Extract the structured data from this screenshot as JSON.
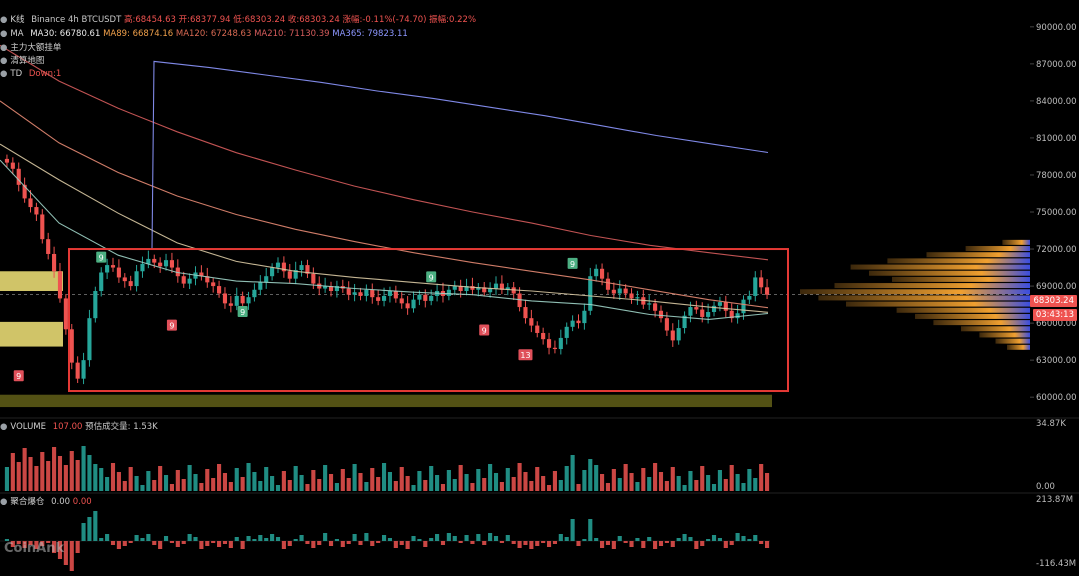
{
  "header": {
    "kline": {
      "label": "K线",
      "source": "Binance 4h BTCUSDT",
      "high": "高:68454.63",
      "open": "开:68377.94",
      "low": "低:68303.24",
      "close": "收:68303.24",
      "change": "涨幅:-0.11%(-74.70)",
      "amplitude": "振幅:0.22%"
    },
    "ma": {
      "label": "MA",
      "ma30": "MA30: 66780.61",
      "ma89": "MA89: 66874.16",
      "ma120": "MA120: 67248.63",
      "ma210": "MA210: 71130.39",
      "ma365": "MA365: 79823.11"
    },
    "indicator1": "主力大额挂单",
    "indicator2": "清算地图",
    "td": {
      "label": "TD",
      "value": "Down:1"
    }
  },
  "volume_header": {
    "label": "VOLUME",
    "value": "107.00",
    "est": "预估成交量: 1.53K"
  },
  "oi_header": {
    "label": "聚合爆仓",
    "value1": "0.00",
    "value2": "0.00"
  },
  "price_tags": {
    "last_price": "68303.24",
    "countdown": "03:43:13"
  },
  "watermark": "CoinAnk",
  "colors": {
    "up": "#26a69a",
    "down": "#ef5350",
    "box": "#e53935",
    "liq_band": "#f5e67a",
    "liq_bottom": "#5c5a16",
    "volume_profile": "#f0a030",
    "volume_profile_cold": "#3b4ee0"
  },
  "chart_data": {
    "type": "candlestick",
    "title": "Binance 4h BTCUSDT",
    "y_axis": {
      "ticks": [
        90000,
        87000,
        84000,
        81000,
        78000,
        75000,
        72000,
        69000,
        66000,
        63000,
        60000
      ],
      "tick_labels": [
        "90000.00",
        "87000.00",
        "84000.00",
        "81000.00",
        "78000.00",
        "75000.00",
        "72000.00",
        "69000.00",
        "66000.00",
        "63000.00",
        "60000.00"
      ],
      "ylim": [
        58800,
        91200
      ]
    },
    "last_price": 68303.24,
    "range_box": {
      "top": 72000,
      "bottom": 60500
    },
    "liquidation_bands": [
      {
        "from": 68600,
        "to": 70200
      },
      {
        "from": 64100,
        "to": 66100
      },
      {
        "from": 59200,
        "to": 60200
      }
    ],
    "td_labels": [
      {
        "text": "9",
        "price": 61700,
        "type": "down",
        "index": 2
      },
      {
        "text": "9",
        "price": 71300,
        "type": "up",
        "index": 16
      },
      {
        "text": "9",
        "price": 65800,
        "type": "down",
        "index": 28
      },
      {
        "text": "9",
        "price": 66900,
        "type": "up",
        "index": 40
      },
      {
        "text": "9",
        "price": 69700,
        "type": "up",
        "index": 72
      },
      {
        "text": "9",
        "price": 65400,
        "type": "down",
        "index": 81
      },
      {
        "text": "13",
        "price": 63400,
        "type": "down",
        "index": 88
      },
      {
        "text": "9",
        "price": 70800,
        "type": "up",
        "index": 96
      }
    ],
    "closes": [
      79000,
      78500,
      77200,
      76100,
      75400,
      74800,
      72800,
      71600,
      70200,
      68000,
      65500,
      62800,
      61500,
      63000,
      66400,
      68600,
      70100,
      70700,
      70500,
      69700,
      69400,
      69000,
      70200,
      70800,
      71200,
      70900,
      70600,
      71100,
      70500,
      69800,
      69200,
      69600,
      70100,
      69800,
      69300,
      69000,
      68400,
      67600,
      67400,
      68200,
      67600,
      68100,
      68700,
      69300,
      69800,
      70500,
      70900,
      70200,
      69600,
      70300,
      70700,
      70000,
      69200,
      68800,
      69000,
      68600,
      69000,
      68800,
      68300,
      68500,
      68200,
      68700,
      68100,
      67800,
      68200,
      68600,
      68000,
      67600,
      67200,
      67900,
      68300,
      67800,
      68200,
      68600,
      68200,
      68700,
      69000,
      68600,
      69000,
      68700,
      68900,
      68500,
      68800,
      69200,
      68700,
      68900,
      68400,
      67300,
      66400,
      65800,
      65200,
      64700,
      64000,
      63900,
      64800,
      65700,
      66200,
      66000,
      67000,
      69800,
      70400,
      69600,
      68700,
      68400,
      68800,
      68400,
      68000,
      68100,
      67500,
      67600,
      67000,
      66400,
      65400,
      64600,
      65600,
      66600,
      67300,
      67100,
      66500,
      66900,
      67400,
      67700,
      67000,
      66400,
      66800,
      67900,
      68200,
      69700,
      68900,
      68300
    ],
    "ma": {
      "MA30": {
        "color": "#9fd3c7",
        "values": [
          79200,
          74100,
          71500,
          70100,
          69400,
          69200,
          68800,
          68500,
          68300,
          67800,
          67500,
          66700,
          66300,
          66780.61
        ]
      },
      "MA89": {
        "color": "#d9c9a3",
        "values": [
          80500,
          77600,
          74900,
          72500,
          71000,
          70200,
          69700,
          69300,
          68900,
          68600,
          68200,
          67800,
          67300,
          66874.16
        ]
      },
      "MA120": {
        "color": "#e68a73",
        "values": [
          84000,
          80600,
          78200,
          76300,
          74800,
          73600,
          72600,
          71700,
          70900,
          70200,
          69500,
          68700,
          67900,
          67248.63
        ]
      },
      "MA210": {
        "color": "#d65c5c",
        "values": [
          88500,
          85600,
          83400,
          81500,
          79800,
          78400,
          77100,
          76000,
          75000,
          74100,
          73100,
          72300,
          71700,
          71130.39
        ]
      },
      "MA365": {
        "color": "#8d97ff",
        "values": [
          72000,
          87200,
          86700,
          86100,
          85500,
          84800,
          84200,
          83500,
          82800,
          82000,
          81200,
          80500,
          79823.11
        ]
      }
    },
    "volume": {
      "yticks": [
        34870,
        0
      ],
      "ytick_labels": [
        "34.87K",
        "0.00"
      ]
    },
    "liquidations": {
      "yticks": [
        213870000,
        -116430000
      ],
      "ytick_labels": [
        "213.87M",
        "-116.43M"
      ]
    },
    "volume_profile_side": [
      {
        "price": 72500,
        "w": 0.12
      },
      {
        "price": 72000,
        "w": 0.28
      },
      {
        "price": 71500,
        "w": 0.45
      },
      {
        "price": 71000,
        "w": 0.62
      },
      {
        "price": 70500,
        "w": 0.78
      },
      {
        "price": 70000,
        "w": 0.7
      },
      {
        "price": 69500,
        "w": 0.6
      },
      {
        "price": 69000,
        "w": 0.85
      },
      {
        "price": 68500,
        "w": 1.0
      },
      {
        "price": 68000,
        "w": 0.92
      },
      {
        "price": 67500,
        "w": 0.8
      },
      {
        "price": 67000,
        "w": 0.58
      },
      {
        "price": 66500,
        "w": 0.5
      },
      {
        "price": 66000,
        "w": 0.42
      },
      {
        "price": 65500,
        "w": 0.3
      },
      {
        "price": 65000,
        "w": 0.22
      },
      {
        "price": 64500,
        "w": 0.15
      },
      {
        "price": 64000,
        "w": 0.1
      }
    ]
  }
}
